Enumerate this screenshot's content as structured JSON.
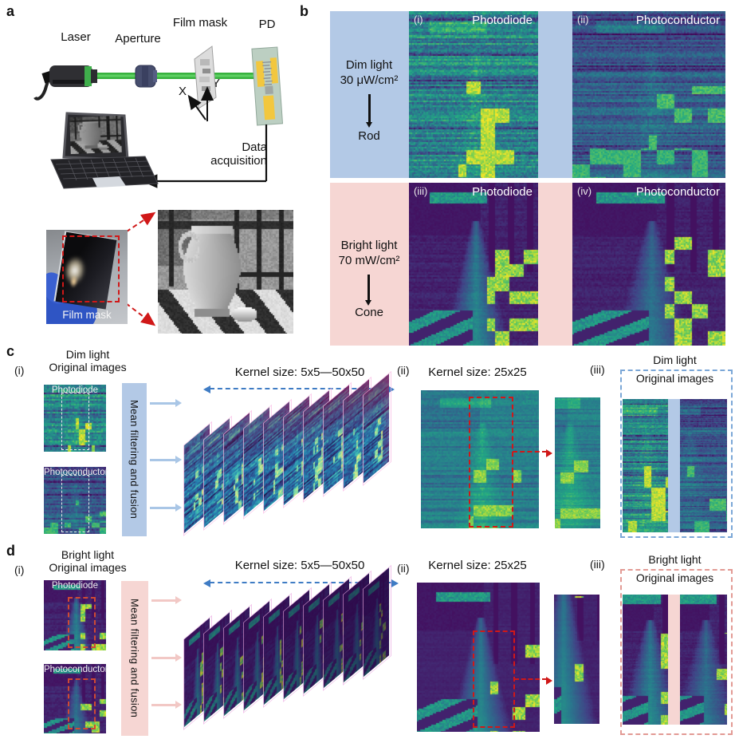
{
  "p": {
    "a": {
      "label": "a",
      "laser": "Laser",
      "aperture": "Aperture",
      "film_mask": "Film mask",
      "pd": "PD",
      "axis_x": "X",
      "axis_y": "Y",
      "data_acq_line1": "Data",
      "data_acq_line2": "acquisition",
      "photo_label": "Film mask"
    },
    "b": {
      "label": "b",
      "dim_title": "Dim light",
      "dim_power": "30 μW/cm²",
      "dim_cell": "Rod",
      "bright_title": "Bright light",
      "bright_power": "70 mW/cm²",
      "bright_cell": "Cone",
      "i1": "(i)",
      "n1": "Photodiode",
      "i2": "(ii)",
      "n2": "Photoconductor",
      "i3": "(iii)",
      "n3": "Photodiode",
      "i4": "(iv)",
      "n4": "Photoconductor"
    },
    "c": {
      "label": "c",
      "idx_i": "(i)",
      "title1": "Dim light",
      "title2": "Original images",
      "img1": "Photodiode",
      "img2": "Photoconductor",
      "process": "Mean filtering and fusion",
      "kernel_range": "Kernel size: 5x5—50x50",
      "idx_ii": "(ii)",
      "kernel_single": "Kernel size: 25x25",
      "idx_iii": "(iii)",
      "box1": "Dim light",
      "box2": "Original images"
    },
    "d": {
      "label": "d",
      "idx_i": "(i)",
      "title1": "Bright light",
      "title2": "Original images",
      "img1": "Photodiode",
      "img2": "Photoconductor",
      "process": "Mean filtering and fusion",
      "kernel_range": "Kernel size: 5x5—50x50",
      "idx_ii": "(ii)",
      "kernel_single": "Kernel size: 25x25",
      "idx_iii": "(iii)",
      "box1": "Bright light",
      "box2": "Original images"
    }
  },
  "colors": {
    "dim_band": "#b3c9e6",
    "bright_band": "#f6d6d3",
    "beam_green": "#38b23e",
    "dashed_blue": "#3f7cc4",
    "dashed_red": "#d01818",
    "orange_red_dash": "#cf4a33",
    "box_blue_dash": "#7ba7d7",
    "box_pink_dash": "#e29a94",
    "pd_pad_yellow": "#f2c73e",
    "pd_board": "#bccfc2"
  }
}
